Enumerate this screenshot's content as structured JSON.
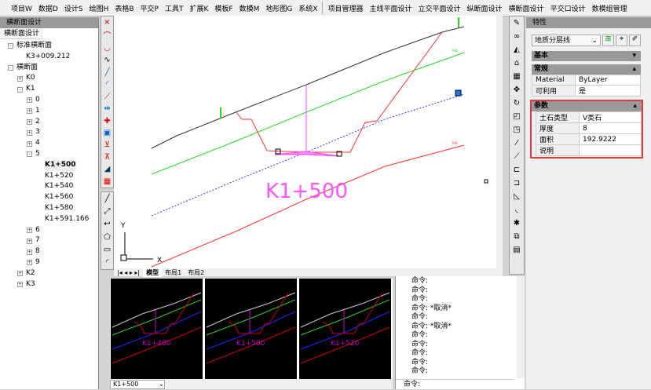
{
  "menu": [
    "项目W",
    "数据D",
    "设计S",
    "绘图H",
    "表格B",
    "平交P",
    "工具T",
    "扩展K",
    "模板F",
    "数模M",
    "地形图G",
    "系统X"
  ],
  "menu2": [
    "项目管理器",
    "主线平面设计",
    "立交平面设计",
    "纵断面设计",
    "横断面设计",
    "平交口设计",
    "数模组管理"
  ],
  "left": {
    "title": "横断面设计",
    "tab": "横断面设计",
    "tree": [
      {
        "label": "标准横断面",
        "lvl": 0,
        "pm": "-"
      },
      {
        "label": "K3+009.212",
        "lvl": 1,
        "pm": ""
      },
      {
        "label": "横断面",
        "lvl": 0,
        "pm": "-"
      },
      {
        "label": "K0",
        "lvl": 1,
        "pm": "+"
      },
      {
        "label": "K1",
        "lvl": 1,
        "pm": "-"
      },
      {
        "label": "0",
        "lvl": 2,
        "pm": "+"
      },
      {
        "label": "1",
        "lvl": 2,
        "pm": "+"
      },
      {
        "label": "2",
        "lvl": 2,
        "pm": "+"
      },
      {
        "label": "3",
        "lvl": 2,
        "pm": "+"
      },
      {
        "label": "4",
        "lvl": 2,
        "pm": "+"
      },
      {
        "label": "5",
        "lvl": 2,
        "pm": "-"
      },
      {
        "label": "K1+500",
        "lvl": 3,
        "pm": "",
        "bold": true
      },
      {
        "label": "K1+520",
        "lvl": 3,
        "pm": ""
      },
      {
        "label": "K1+540",
        "lvl": 3,
        "pm": ""
      },
      {
        "label": "K1+560",
        "lvl": 3,
        "pm": ""
      },
      {
        "label": "K1+580",
        "lvl": 3,
        "pm": ""
      },
      {
        "label": "K1+591.166",
        "lvl": 3,
        "pm": ""
      },
      {
        "label": "6",
        "lvl": 2,
        "pm": "+"
      },
      {
        "label": "7",
        "lvl": 2,
        "pm": "+"
      },
      {
        "label": "8",
        "lvl": 2,
        "pm": "+"
      },
      {
        "label": "9",
        "lvl": 2,
        "pm": "+"
      },
      {
        "label": "K2",
        "lvl": 1,
        "pm": "+"
      },
      {
        "label": "K3",
        "lvl": 1,
        "pm": "+"
      }
    ]
  },
  "drawing": {
    "station_label": "K1+500",
    "axis_x": "X",
    "axis_y": "Y",
    "tabs": [
      "模型",
      "布局1",
      "布局2"
    ]
  },
  "thumbs": [
    "K1+480",
    "K1+500",
    "K1+520"
  ],
  "station_select": "K1+500",
  "command": {
    "lines": [
      "命令:",
      "命令:",
      "命令:",
      "命令:  *取消*",
      "命令:",
      "命令:  *取消*",
      "命令:",
      "命令:",
      "命令:",
      "命令:",
      "命令:"
    ],
    "prompt": "命令:"
  },
  "props": {
    "title": "特性",
    "layer_select": "地质分层线",
    "sections": {
      "basic": "基本",
      "general": "常规",
      "params": "参数"
    },
    "general": [
      [
        "Material",
        "ByLayer"
      ],
      [
        "可利用",
        "是"
      ]
    ],
    "params": [
      [
        "土石类型",
        "V类石"
      ],
      [
        "厚度",
        "8"
      ],
      [
        "面积",
        "192.9222"
      ],
      [
        "说明",
        ""
      ]
    ]
  },
  "colors": {
    "highlight_border": "#e53935",
    "ground": "#333333",
    "green": "#22dd22",
    "blue": "#3333ff",
    "red": "#ff3333",
    "magenta": "#ff44ff"
  }
}
